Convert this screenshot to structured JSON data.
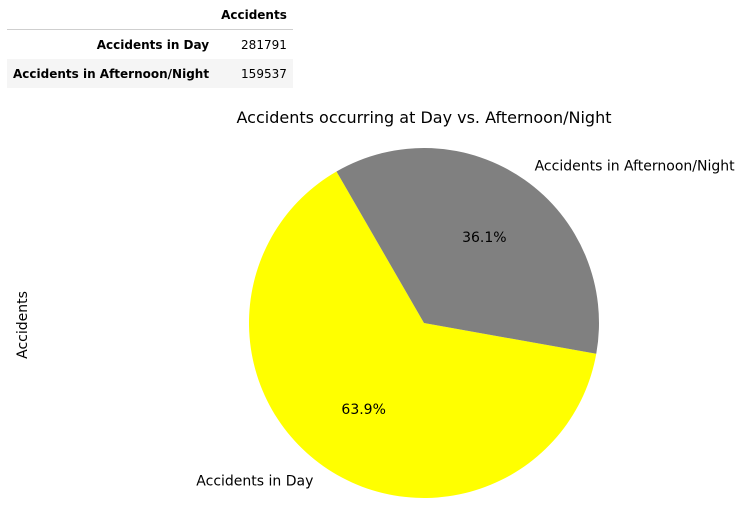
{
  "table": {
    "column_header": "Accidents",
    "rows": [
      {
        "label": "Accidents in Day",
        "value": "281791"
      },
      {
        "label": "Accidents in Afternoon/Night",
        "value": "159537"
      }
    ]
  },
  "chart_data": {
    "type": "pie",
    "title": "Accidents occurring at Day vs. Afternoon/Night",
    "ylabel": "Accidents",
    "categories": [
      "Accidents in Day",
      "Accidents in Afternoon/Night"
    ],
    "values": [
      281791,
      159537
    ],
    "percent_labels": [
      "63.9%",
      "36.1%"
    ],
    "colors": [
      "#ffff00",
      "#808080"
    ],
    "start_angle_deg": 120,
    "counterclockwise": true
  }
}
